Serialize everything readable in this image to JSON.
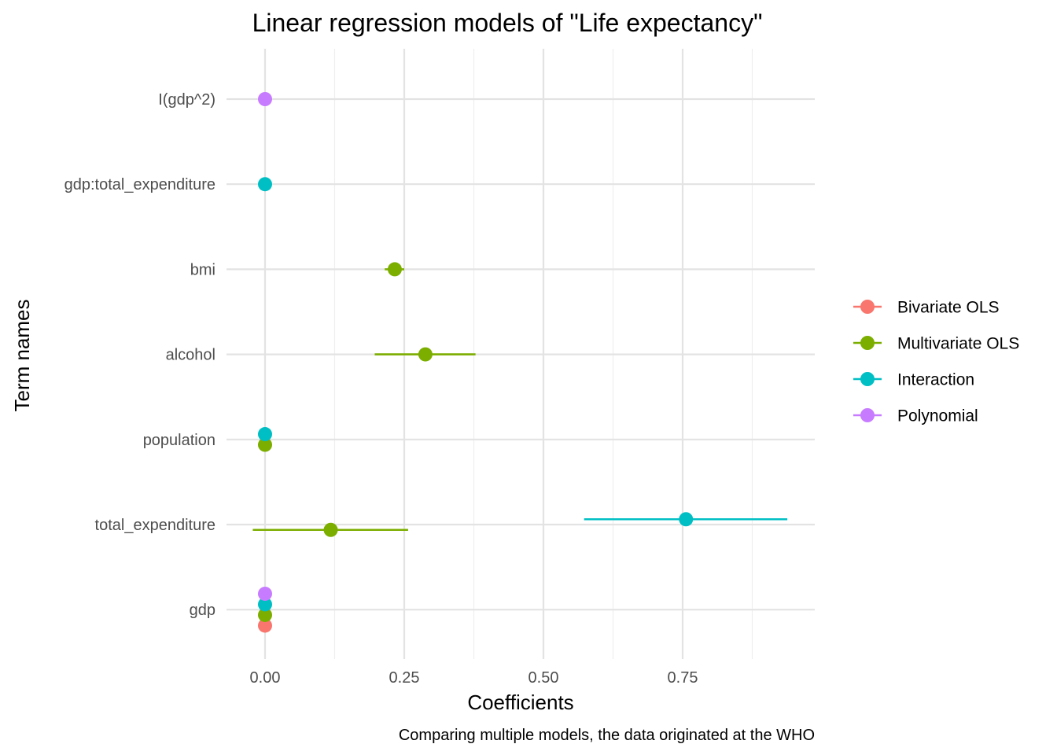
{
  "chart_data": {
    "type": "scatter",
    "title": "Linear regression models of \"Life expectancy\"",
    "xlabel": "Coefficients",
    "ylabel": "Term names",
    "caption": "Comparing multiple models, the data originated at the WHO",
    "xlim": [
      -0.14,
      1.0
    ],
    "x_ticks": [
      0.0,
      0.25,
      0.5,
      0.75
    ],
    "x_tick_labels": [
      "0.00",
      "0.25",
      "0.50",
      "0.75"
    ],
    "categories": [
      "gdp",
      "total_expenditure",
      "population",
      "alcohol",
      "bmi",
      "gdp:total_expenditure",
      "I(gdp^2)"
    ],
    "grid": true,
    "legend_position": "right",
    "series": [
      {
        "name": "Bivariate OLS",
        "color": "#F8766D",
        "points": [
          {
            "term": "gdp",
            "estimate": 0.0,
            "low": 0.0,
            "high": 0.0
          }
        ]
      },
      {
        "name": "Multivariate OLS",
        "color": "#7CAE00",
        "points": [
          {
            "term": "gdp",
            "estimate": 0.0,
            "low": 0.0,
            "high": 0.0
          },
          {
            "term": "total_expenditure",
            "estimate": 0.118,
            "low": -0.022,
            "high": 0.257
          },
          {
            "term": "population",
            "estimate": 0.0,
            "low": 0.0,
            "high": 0.0
          },
          {
            "term": "alcohol",
            "estimate": 0.288,
            "low": 0.197,
            "high": 0.378
          },
          {
            "term": "bmi",
            "estimate": 0.233,
            "low": 0.215,
            "high": 0.25
          }
        ]
      },
      {
        "name": "Interaction",
        "color": "#00BFC4",
        "points": [
          {
            "term": "gdp",
            "estimate": 0.0,
            "low": 0.0,
            "high": 0.0
          },
          {
            "term": "total_expenditure",
            "estimate": 0.756,
            "low": 0.573,
            "high": 0.938
          },
          {
            "term": "population",
            "estimate": 0.0,
            "low": 0.0,
            "high": 0.0
          },
          {
            "term": "gdp:total_expenditure",
            "estimate": 0.0,
            "low": 0.0,
            "high": 0.0
          }
        ]
      },
      {
        "name": "Polynomial",
        "color": "#C77CFF",
        "points": [
          {
            "term": "gdp",
            "estimate": 0.0,
            "low": 0.0,
            "high": 0.0
          },
          {
            "term": "I(gdp^2)",
            "estimate": 0.0,
            "low": 0.0,
            "high": 0.0
          }
        ]
      }
    ]
  }
}
